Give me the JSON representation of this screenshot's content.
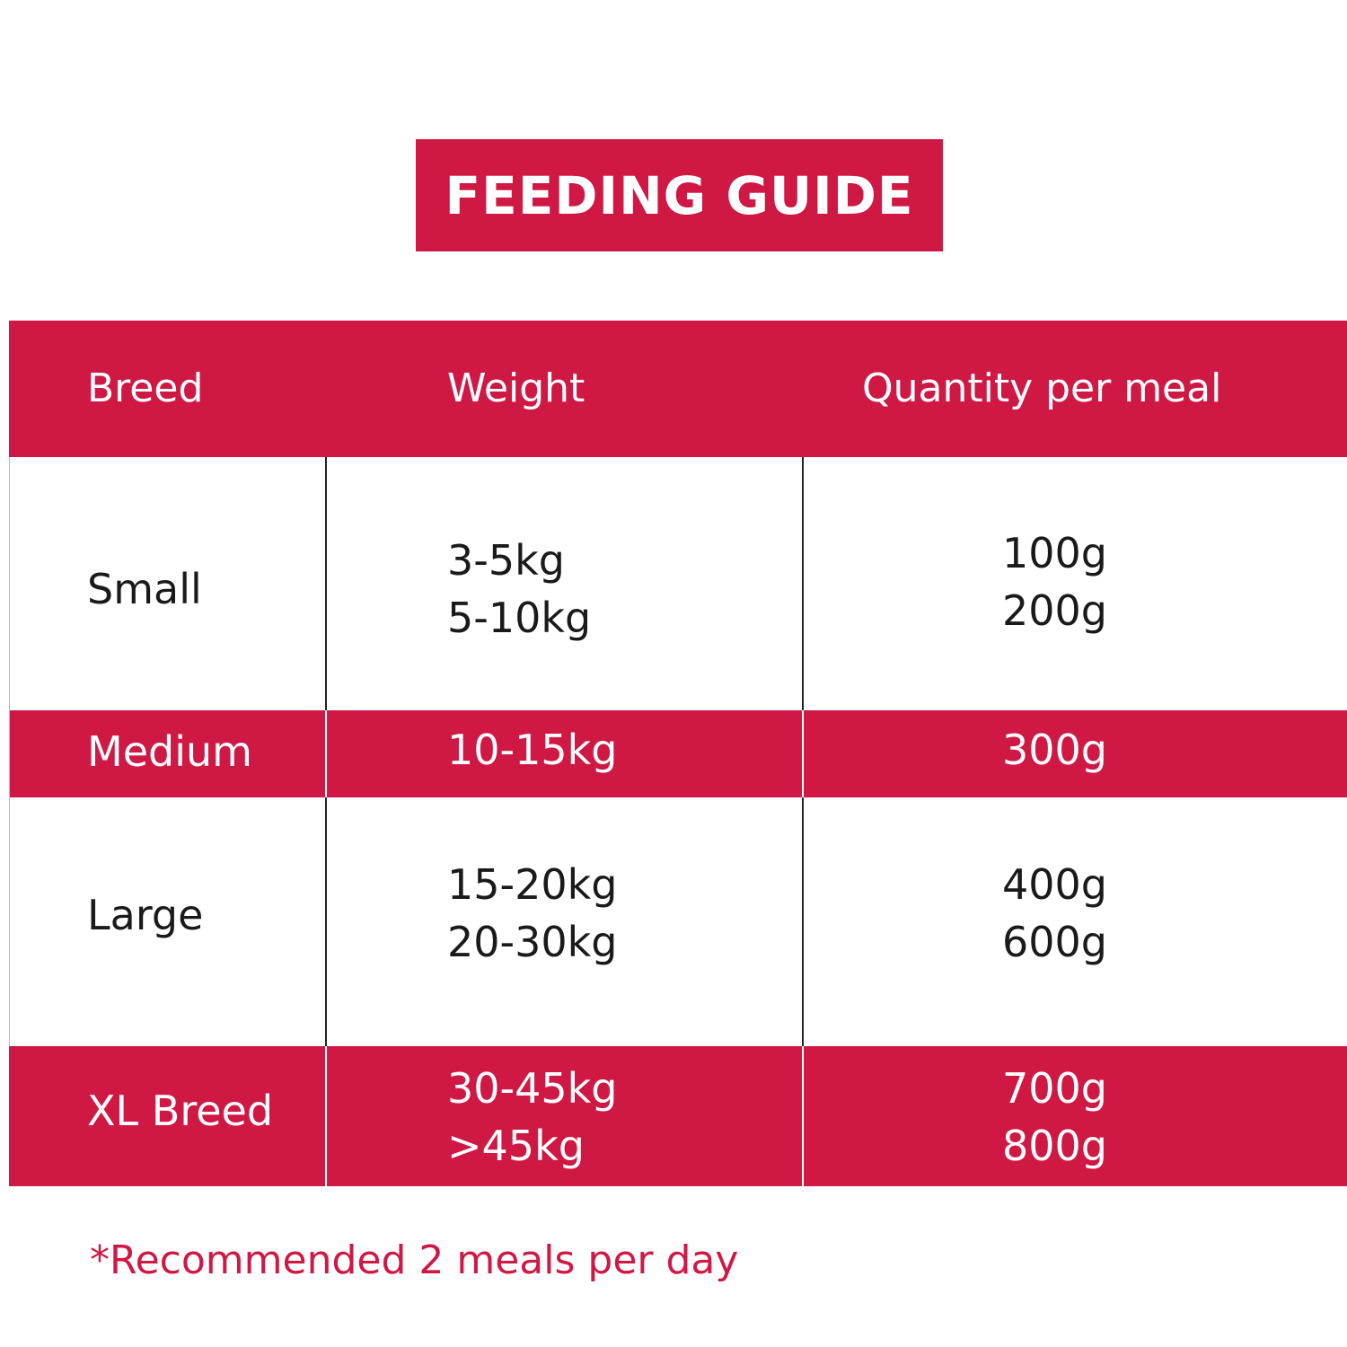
{
  "title": "FEEDING GUIDE",
  "table": {
    "headers": [
      "Breed",
      "Weight",
      "Quantity per meal"
    ],
    "rows": [
      {
        "breed": "Small",
        "weight": [
          "3-5kg",
          "5-10kg"
        ],
        "quantity": [
          "100g",
          "200g"
        ]
      },
      {
        "breed": "Medium",
        "weight": [
          "10-15kg"
        ],
        "quantity": [
          "300g"
        ]
      },
      {
        "breed": "Large",
        "weight": [
          "15-20kg",
          "20-30kg"
        ],
        "quantity": [
          "400g",
          "600g"
        ]
      },
      {
        "breed": "XL Breed",
        "weight": [
          "30-45kg",
          ">45kg"
        ],
        "quantity": [
          "700g",
          "800g"
        ]
      }
    ]
  },
  "footnote": "*Recommended 2 meals per day",
  "colors": {
    "accent": "#d01844",
    "text_dark": "#1a1a1a",
    "background": "#ffffff"
  }
}
